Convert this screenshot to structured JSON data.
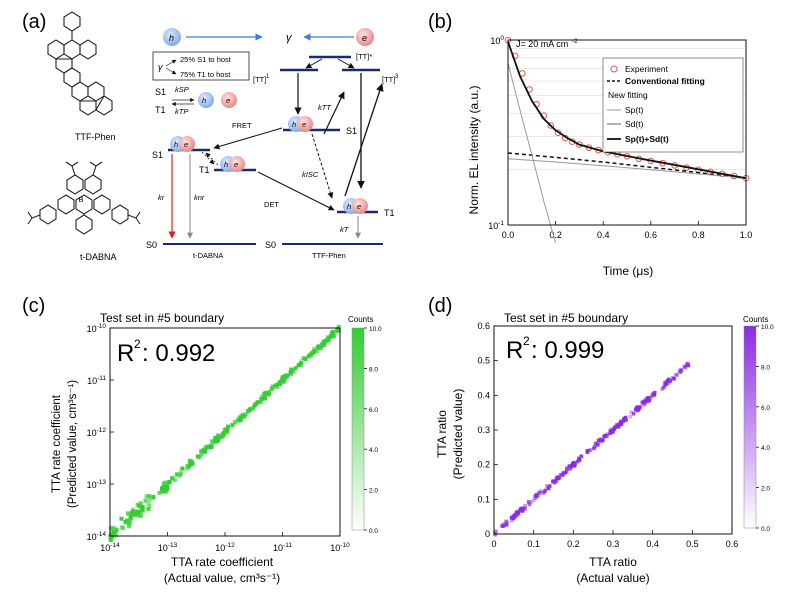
{
  "panels": {
    "a": {
      "label": "(a)",
      "molecule1": "TTF-Phen",
      "molecule2": "t-DABNA",
      "gamma": "γ",
      "box_line1": "25% S1 to host",
      "box_line2": "75% T1 to host",
      "tt_star": "[TT]*",
      "tt_singlet": "[TT]",
      "tt_singlet_sup": "1",
      "tt_triplet": "[TT]",
      "tt_triplet_sup": "3",
      "k_tt": "kTT",
      "k_isc": "kISC",
      "k_sp": "kSP",
      "k_tp": "kTP",
      "k_r": "kr",
      "k_nr": "knr",
      "k_t": "kT",
      "fret": "FRET",
      "det": "DET",
      "s0_left": "S0",
      "s0_right": "S0",
      "s1": "S1",
      "t1": "T1",
      "host_label": "TTF-Phen",
      "dopant_label": "t-DABNA",
      "hole": "h",
      "electron": "e"
    },
    "b": {
      "label": "(b)",
      "annotation": "J= 20 mA cm",
      "annotation_sup": "-2",
      "xlabel": "Time (μs)",
      "ylabel": "Norm. EL intensity (a.u.)",
      "legend": {
        "experiment": "Experiment",
        "conventional": "Conventional fitting",
        "new_fitting": "New fitting",
        "sp": "Sp(t)",
        "sd": "Sd(t)",
        "sum": "Sp(t)+Sd(t)"
      }
    },
    "c": {
      "label": "(c)",
      "title": "Test set in #5 boundary",
      "r2": "R",
      "r2_value": ": 0.992",
      "ylabel1": "TTA rate coefficient",
      "ylabel2": "(Predicted value, cm³s⁻¹)",
      "xlabel1": "TTA rate coefficient",
      "xlabel2": "(Actual value, cm³s⁻¹)",
      "colorbar_title": "Counts",
      "color": "#33cc33"
    },
    "d": {
      "label": "(d)",
      "title": "Test set in #5 boundary",
      "r2": "R",
      "r2_value": ": 0.999",
      "ylabel1": "TTA ratio",
      "ylabel2": "(Predicted value)",
      "xlabel1": "TTA ratio",
      "xlabel2": "(Actual value)",
      "colorbar_title": "Counts",
      "color": "#8a2be2"
    }
  },
  "chart_data": [
    {
      "id": "b",
      "type": "scatter",
      "title": "",
      "xlabel": "Time (μs)",
      "ylabel": "Norm. EL intensity (a.u.)",
      "xlim": [
        0,
        1.0
      ],
      "ylim_log10": [
        -1,
        0
      ],
      "x_ticks": [
        "0.0",
        "0.2",
        "0.4",
        "0.6",
        "0.8",
        "1.0"
      ],
      "y_ticks": [
        "10^0",
        "10^-1"
      ],
      "series": [
        {
          "name": "Experiment",
          "style": "open-circle-red",
          "x": [
            0.0,
            0.03,
            0.06,
            0.09,
            0.12,
            0.15,
            0.18,
            0.21,
            0.24,
            0.27,
            0.3,
            0.34,
            0.38,
            0.42,
            0.46,
            0.5,
            0.55,
            0.6,
            0.65,
            0.7,
            0.75,
            0.8,
            0.85,
            0.9,
            0.95,
            1.0
          ],
          "y": [
            1.0,
            0.82,
            0.66,
            0.54,
            0.45,
            0.39,
            0.345,
            0.315,
            0.295,
            0.282,
            0.272,
            0.262,
            0.254,
            0.247,
            0.241,
            0.235,
            0.228,
            0.222,
            0.216,
            0.21,
            0.204,
            0.199,
            0.194,
            0.189,
            0.184,
            0.179
          ]
        },
        {
          "name": "Conventional fitting",
          "style": "dashed-black",
          "x": [
            0.0,
            0.2,
            0.4,
            0.6,
            0.8,
            1.0
          ],
          "y": [
            0.245,
            0.232,
            0.219,
            0.205,
            0.192,
            0.179
          ]
        },
        {
          "name": "Sp(t)",
          "style": "gray-line",
          "x": [
            0.0,
            0.05,
            0.1,
            0.15,
            0.2
          ],
          "y": [
            0.75,
            0.42,
            0.24,
            0.135,
            0.08
          ]
        },
        {
          "name": "Sd(t)",
          "style": "gray-line",
          "x": [
            0.0,
            0.2,
            0.4,
            0.6,
            0.8,
            1.0
          ],
          "y": [
            0.228,
            0.219,
            0.209,
            0.199,
            0.189,
            0.179
          ]
        },
        {
          "name": "Sp(t)+Sd(t)",
          "style": "bold-black",
          "x": [
            0.0,
            0.05,
            0.1,
            0.15,
            0.2,
            0.25,
            0.3,
            0.4,
            0.5,
            0.6,
            0.8,
            1.0
          ],
          "y": [
            0.98,
            0.64,
            0.47,
            0.375,
            0.325,
            0.295,
            0.272,
            0.25,
            0.236,
            0.223,
            0.2,
            0.179
          ]
        }
      ]
    },
    {
      "id": "c",
      "type": "heatmap",
      "title": "Test set in #5 boundary",
      "xlabel": "TTA rate coefficient (Actual value, cm³s⁻¹)",
      "ylabel": "TTA rate coefficient (Predicted value, cm³s⁻¹)",
      "xlim_log10": [
        -14,
        -10
      ],
      "ylim_log10": [
        -14,
        -10
      ],
      "x_ticks": [
        "10^-14",
        "10^-13",
        "10^-12",
        "10^-11",
        "10^-10"
      ],
      "y_ticks": [
        "10^-14",
        "10^-13",
        "10^-12",
        "10^-11",
        "10^-10"
      ],
      "colorbar": {
        "min": 0,
        "max": 10,
        "ticks": [
          "0.0",
          "2.0",
          "4.0",
          "6.0",
          "8.0",
          "10.0"
        ]
      },
      "diagonal": [
        -14,
        -10
      ],
      "r2": 0.992
    },
    {
      "id": "d",
      "type": "heatmap",
      "title": "Test set in #5 boundary",
      "xlabel": "TTA ratio (Actual value)",
      "ylabel": "TTA ratio (Predicted value)",
      "xlim": [
        0,
        0.6
      ],
      "ylim": [
        0,
        0.6
      ],
      "x_ticks": [
        "0",
        "0.1",
        "0.2",
        "0.3",
        "0.4",
        "0.5",
        "0.6"
      ],
      "y_ticks": [
        "0",
        "0.1",
        "0.2",
        "0.3",
        "0.4",
        "0.5",
        "0.6"
      ],
      "colorbar": {
        "min": 0,
        "max": 10,
        "ticks": [
          "0.0",
          "2.0",
          "4.0",
          "6.0",
          "8.0",
          "10.0"
        ]
      },
      "diagonal": [
        0,
        0.49
      ],
      "r2": 0.999
    }
  ]
}
